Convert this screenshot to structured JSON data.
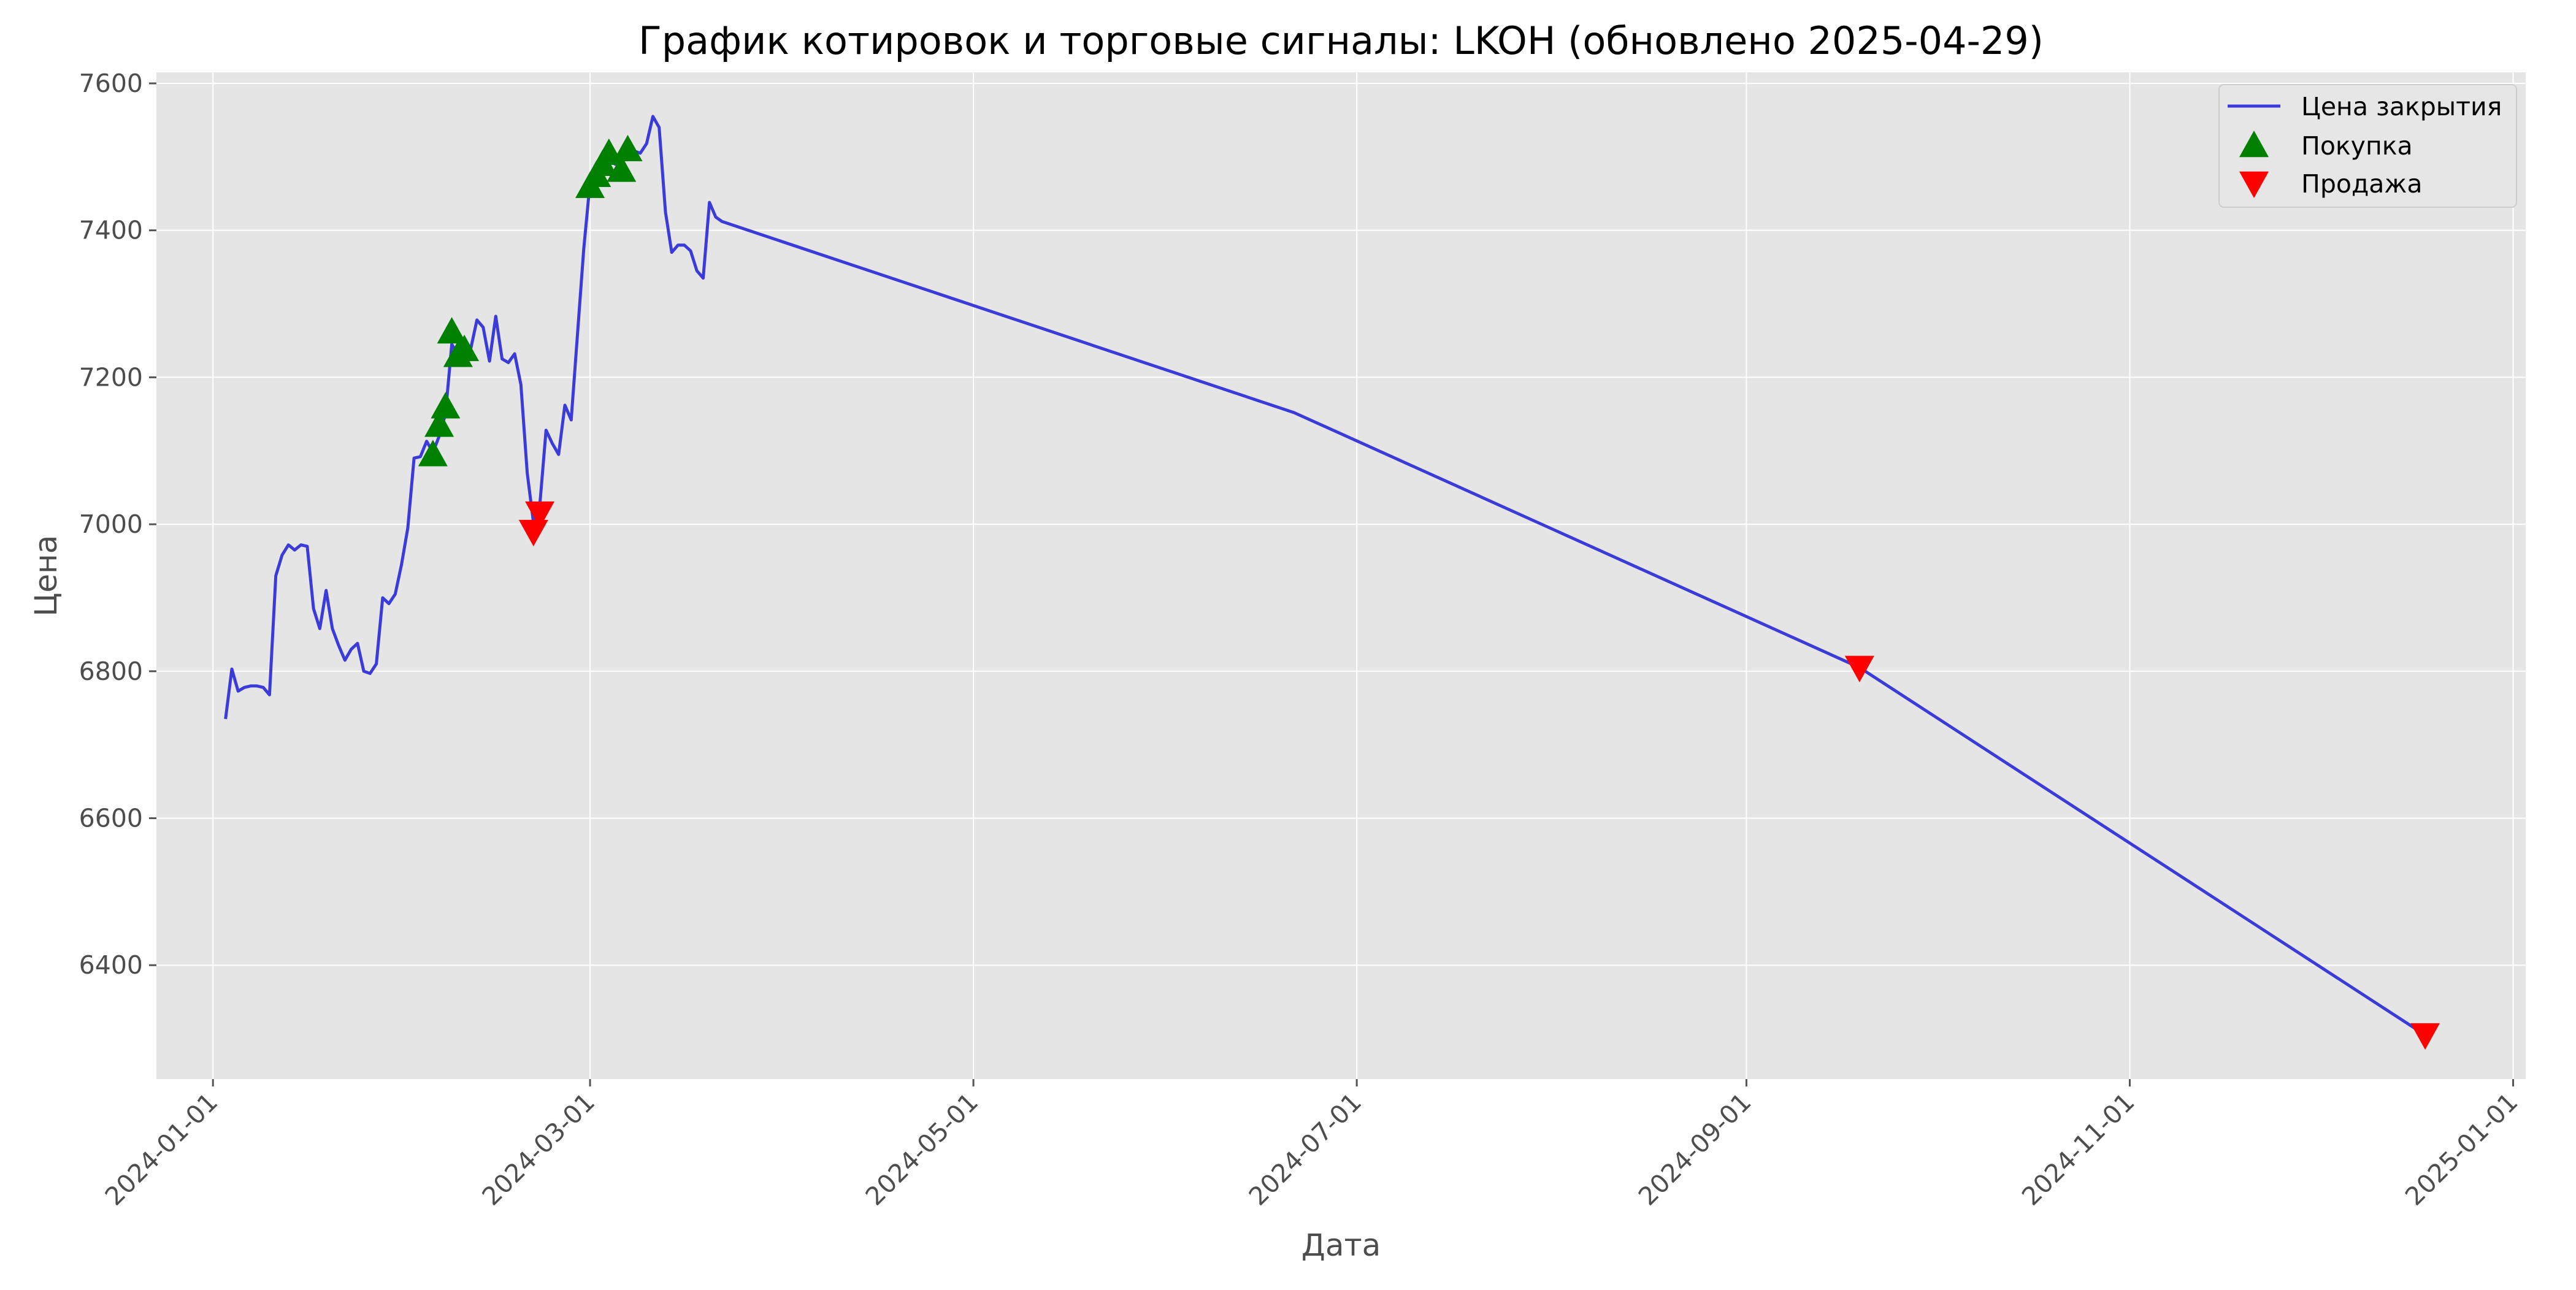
{
  "chart_data": {
    "type": "line",
    "title": "График котировок и торговые сигналы: LKOH (обновлено 2025-04-29)",
    "xlabel": "Дата",
    "ylabel": "Цена",
    "xlim": [
      "2023-12-23",
      "2025-01-03"
    ],
    "ylim": [
      6245,
      7615
    ],
    "x_ticks": [
      "2024-01-01",
      "2024-03-01",
      "2024-05-01",
      "2024-07-01",
      "2024-09-01",
      "2024-11-01",
      "2025-01-01"
    ],
    "y_ticks": [
      6400,
      6600,
      6800,
      7000,
      7200,
      7400,
      7600
    ],
    "grid": true,
    "legend_position": "top-right",
    "colors": {
      "plot_background": "#e5e5e5",
      "grid": "#ffffff",
      "line": "#3b3bd9",
      "buy": "#008000",
      "sell": "#ff0000"
    },
    "series": [
      {
        "name": "Цена закрытия",
        "type": "line",
        "points": [
          [
            "2024-01-03",
            6735
          ],
          [
            "2024-01-04",
            6803
          ],
          [
            "2024-01-05",
            6773
          ],
          [
            "2024-01-06",
            6778
          ],
          [
            "2024-01-07",
            6780
          ],
          [
            "2024-01-08",
            6780
          ],
          [
            "2024-01-09",
            6778
          ],
          [
            "2024-01-10",
            6768
          ],
          [
            "2024-01-11",
            6930
          ],
          [
            "2024-01-12",
            6958
          ],
          [
            "2024-01-13",
            6972
          ],
          [
            "2024-01-14",
            6965
          ],
          [
            "2024-01-15",
            6972
          ],
          [
            "2024-01-16",
            6970
          ],
          [
            "2024-01-17",
            6885
          ],
          [
            "2024-01-18",
            6858
          ],
          [
            "2024-01-19",
            6910
          ],
          [
            "2024-01-20",
            6858
          ],
          [
            "2024-01-21",
            6835
          ],
          [
            "2024-01-22",
            6815
          ],
          [
            "2024-01-23",
            6830
          ],
          [
            "2024-01-24",
            6838
          ],
          [
            "2024-01-25",
            6800
          ],
          [
            "2024-01-26",
            6797
          ],
          [
            "2024-01-27",
            6810
          ],
          [
            "2024-01-28",
            6900
          ],
          [
            "2024-01-29",
            6892
          ],
          [
            "2024-01-30",
            6905
          ],
          [
            "2024-01-31",
            6945
          ],
          [
            "2024-02-01",
            6995
          ],
          [
            "2024-02-02",
            7090
          ],
          [
            "2024-02-03",
            7092
          ],
          [
            "2024-02-04",
            7113
          ],
          [
            "2024-02-05",
            7098
          ],
          [
            "2024-02-06",
            7120
          ],
          [
            "2024-02-07",
            7150
          ],
          [
            "2024-02-08",
            7245
          ],
          [
            "2024-02-09",
            7230
          ],
          [
            "2024-02-10",
            7245
          ],
          [
            "2024-02-11",
            7238
          ],
          [
            "2024-02-12",
            7278
          ],
          [
            "2024-02-13",
            7268
          ],
          [
            "2024-02-14",
            7222
          ],
          [
            "2024-02-15",
            7283
          ],
          [
            "2024-02-16",
            7225
          ],
          [
            "2024-02-17",
            7220
          ],
          [
            "2024-02-18",
            7232
          ],
          [
            "2024-02-19",
            7190
          ],
          [
            "2024-02-20",
            7070
          ],
          [
            "2024-02-21",
            7002
          ],
          [
            "2024-02-22",
            7025
          ],
          [
            "2024-02-23",
            7128
          ],
          [
            "2024-02-24",
            7110
          ],
          [
            "2024-02-25",
            7095
          ],
          [
            "2024-02-26",
            7162
          ],
          [
            "2024-02-27",
            7142
          ],
          [
            "2024-02-28",
            7258
          ],
          [
            "2024-02-29",
            7375
          ],
          [
            "2024-03-01",
            7465
          ],
          [
            "2024-03-02",
            7482
          ],
          [
            "2024-03-03",
            7497
          ],
          [
            "2024-03-04",
            7512
          ],
          [
            "2024-03-05",
            7490
          ],
          [
            "2024-03-06",
            7505
          ],
          [
            "2024-03-07",
            7512
          ],
          [
            "2024-03-08",
            7508
          ],
          [
            "2024-03-09",
            7505
          ],
          [
            "2024-03-10",
            7518
          ],
          [
            "2024-03-11",
            7555
          ],
          [
            "2024-03-12",
            7540
          ],
          [
            "2024-03-13",
            7425
          ],
          [
            "2024-03-14",
            7370
          ],
          [
            "2024-03-15",
            7380
          ],
          [
            "2024-03-16",
            7380
          ],
          [
            "2024-03-17",
            7372
          ],
          [
            "2024-03-18",
            7345
          ],
          [
            "2024-03-19",
            7335
          ],
          [
            "2024-03-20",
            7438
          ],
          [
            "2024-03-21",
            7418
          ],
          [
            "2024-03-22",
            7412
          ],
          [
            "2024-06-21",
            7152
          ],
          [
            "2024-09-19",
            6805
          ],
          [
            "2024-12-18",
            6305
          ]
        ]
      },
      {
        "name": "Покупка",
        "type": "scatter",
        "marker": "triangle-up",
        "points": [
          [
            "2024-02-05",
            7095
          ],
          [
            "2024-02-06",
            7135
          ],
          [
            "2024-02-07",
            7160
          ],
          [
            "2024-02-08",
            7262
          ],
          [
            "2024-02-09",
            7230
          ],
          [
            "2024-02-10",
            7238
          ],
          [
            "2024-03-01",
            7460
          ],
          [
            "2024-03-02",
            7475
          ],
          [
            "2024-03-03",
            7490
          ],
          [
            "2024-03-04",
            7505
          ],
          [
            "2024-03-06",
            7482
          ],
          [
            "2024-03-07",
            7510
          ]
        ]
      },
      {
        "name": "Продажа",
        "type": "scatter",
        "marker": "triangle-down",
        "points": [
          [
            "2024-02-21",
            6990
          ],
          [
            "2024-02-22",
            7015
          ],
          [
            "2024-09-19",
            6805
          ],
          [
            "2024-12-18",
            6305
          ]
        ]
      }
    ]
  }
}
